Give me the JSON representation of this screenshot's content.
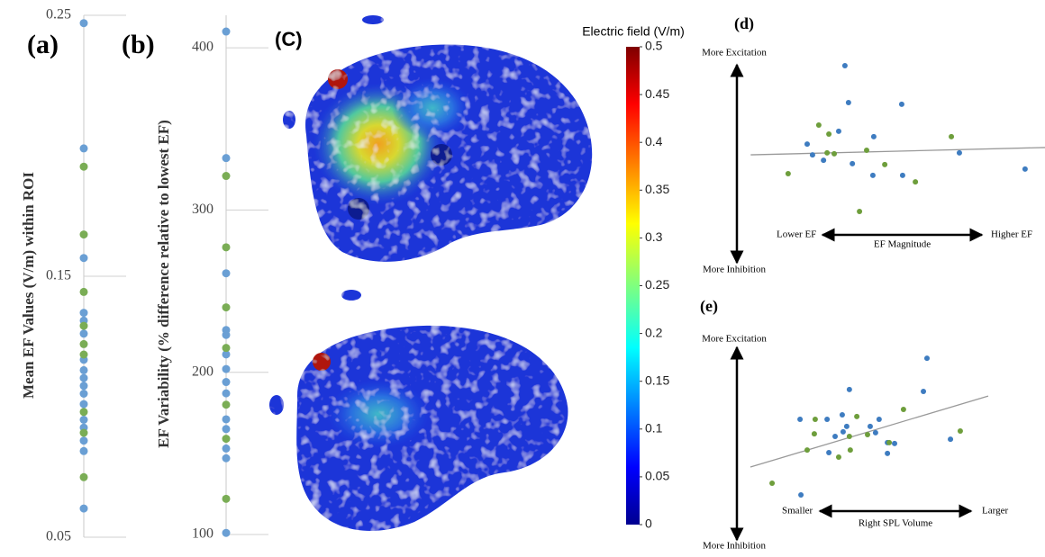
{
  "chart_data": [
    {
      "type": "strip",
      "panel_label": "(a)",
      "y_label": "Mean EF Values (V/m) within ROI",
      "ylim": [
        0.05,
        0.25
      ],
      "yticks": [
        0.05,
        0.15,
        0.25
      ],
      "series": [
        {
          "color": "#6a9fd4",
          "values": [
            0.247,
            0.199,
            0.157,
            0.136,
            0.133,
            0.128,
            0.118,
            0.114,
            0.111,
            0.108,
            0.105,
            0.101,
            0.095,
            0.092,
            0.087,
            0.083,
            0.061
          ]
        },
        {
          "color": "#7aad55",
          "values": [
            0.192,
            0.166,
            0.144,
            0.131,
            0.124,
            0.12,
            0.098,
            0.09,
            0.073
          ]
        }
      ]
    },
    {
      "type": "strip",
      "panel_label": "(b)",
      "y_label": "EF Variability (% difference relative to lowest EF)",
      "ylim": [
        100,
        420
      ],
      "yticks": [
        100,
        200,
        300,
        400
      ],
      "series": [
        {
          "color": "#6a9fd4",
          "values": [
            410,
            332,
            261,
            226,
            223,
            211,
            202,
            194,
            187,
            171,
            165,
            153,
            147,
            101
          ]
        },
        {
          "color": "#7aad55",
          "values": [
            321,
            277,
            240,
            215,
            180,
            159,
            122
          ]
        }
      ]
    },
    {
      "type": "colorbar",
      "panel_label": "(C)",
      "title": "Electric field (V/m)",
      "colormap": "jet",
      "ylim": [
        0,
        0.5
      ],
      "yticks": [
        0,
        0.05,
        0.1,
        0.15,
        0.2,
        0.25,
        0.3,
        0.35,
        0.4,
        0.45,
        0.5
      ]
    },
    {
      "type": "scatter",
      "panel_label": "(d)",
      "annotations": {
        "top": "More Excitation",
        "bottom": "More Inhibition",
        "left": "Lower EF",
        "axis": "EF Magnitude",
        "right": "Higher EF"
      },
      "xlim": [
        0,
        100
      ],
      "ylim": [
        0,
        100
      ],
      "series": [
        {
          "color": "#3e7cc0",
          "x": [
            32.7,
            33.9,
            51.8,
            30.6,
            42.4,
            20,
            35.2,
            21.8,
            25.5,
            42.1,
            52.1,
            71.2,
            93.3
          ],
          "y": [
            94.6,
            77.5,
            76.7,
            64.2,
            61.7,
            58.3,
            49.2,
            53.3,
            50.8,
            43.8,
            43.8,
            54.2,
            46.7
          ]
        },
        {
          "color": "#6e9e3c",
          "x": [
            23.9,
            27.3,
            40,
            26.7,
            29.1,
            46.1,
            56.4,
            13.6,
            68.5,
            37.6
          ],
          "y": [
            67.1,
            62.9,
            55.4,
            54.2,
            53.8,
            48.8,
            40.8,
            44.6,
            61.7,
            27.1
          ]
        }
      ],
      "trend_line": {
        "x": [
          1,
          100
        ],
        "y": [
          53.3,
          56.7
        ]
      }
    },
    {
      "type": "scatter",
      "panel_label": "(e)",
      "annotations": {
        "top": "More Excitation",
        "bottom": "More Inhibition",
        "left": "Smaller",
        "axis": "Right SPL Volume",
        "right": "Larger"
      },
      "xlim": [
        0,
        100
      ],
      "ylim": [
        0,
        100
      ],
      "series": [
        {
          "color": "#3e7cc0",
          "x": [
            60.3,
            34.2,
            59.1,
            31.8,
            17.6,
            26.7,
            44.2,
            33.3,
            41.2,
            32.1,
            29.4,
            43,
            47,
            49.4,
            27.3,
            47,
            68.2,
            17.9
          ],
          "y": [
            88.3,
            73.8,
            72.9,
            62.1,
            60,
            60,
            60,
            56.7,
            56.7,
            54.2,
            52.1,
            53.8,
            49.2,
            48.8,
            44.6,
            44.2,
            50.8,
            25
          ]
        },
        {
          "color": "#6e9e3c",
          "x": [
            22.7,
            36.7,
            52.4,
            22.4,
            34.2,
            40.3,
            47.6,
            20,
            34.5,
            30.6,
            71.5,
            8.2
          ],
          "y": [
            60,
            61.3,
            64.6,
            53.3,
            52.1,
            52.9,
            49.2,
            45.8,
            45.8,
            42.5,
            54.6,
            30.4
          ]
        }
      ],
      "trend_line": {
        "x": [
          0.9,
          80.9
        ],
        "y": [
          37.9,
          70.8
        ]
      }
    }
  ]
}
